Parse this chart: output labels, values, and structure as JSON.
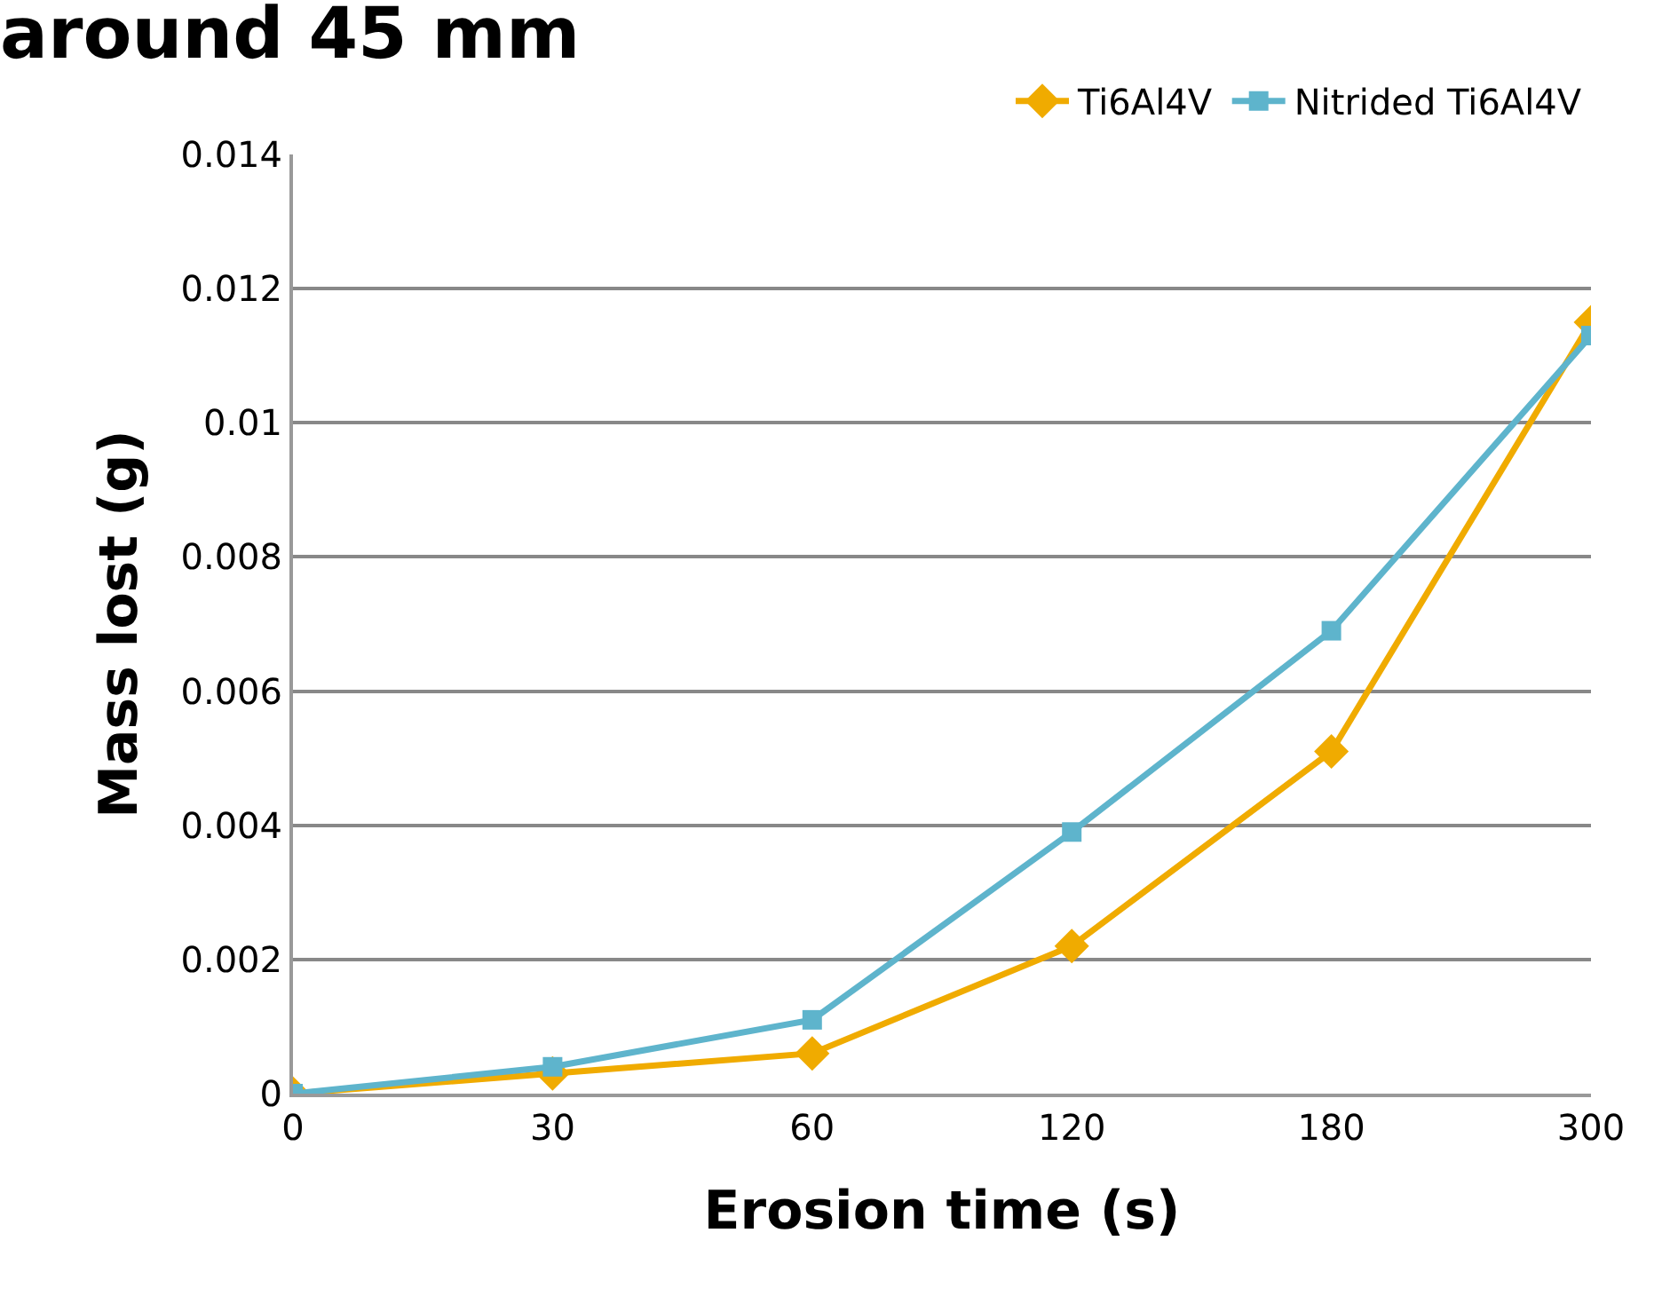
{
  "chart_data": {
    "type": "line",
    "title": "around 45 mm",
    "xlabel": "Erosion time (s)",
    "ylabel": "Mass lost (g)",
    "categories": [
      "0",
      "30",
      "60",
      "120",
      "180",
      "300"
    ],
    "series": [
      {
        "name": "Ti6Al4V",
        "color": "#f0ab00",
        "marker": "diamond",
        "values": [
          0,
          0.0003,
          0.0006,
          0.0022,
          0.0051,
          0.0115
        ]
      },
      {
        "name": "Nitrided Ti6Al4V",
        "color": "#5eb4cc",
        "marker": "square",
        "values": [
          0,
          0.0004,
          0.0011,
          0.0039,
          0.0069,
          0.0113
        ]
      }
    ],
    "ylim": [
      0,
      0.014
    ],
    "yticks": [
      0,
      0.002,
      0.004,
      0.006,
      0.008,
      0.01,
      0.012,
      0.014
    ],
    "grid": "y",
    "legend": "top right",
    "line_style": "solid"
  }
}
